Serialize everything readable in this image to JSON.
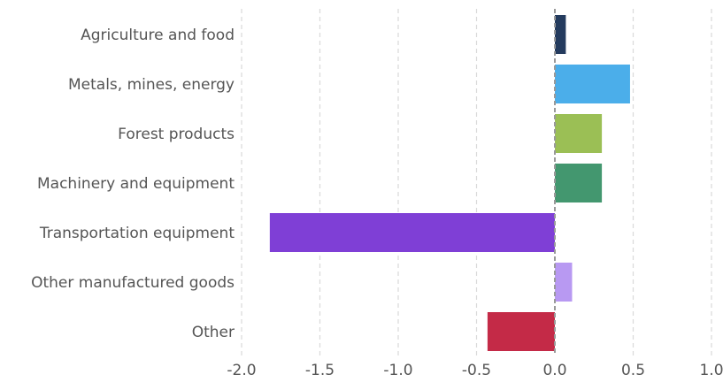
{
  "chart_data": {
    "type": "bar",
    "orientation": "horizontal",
    "title": "",
    "xlabel": "",
    "ylabel": "",
    "categories": [
      "Agriculture and food",
      "Metals, mines, energy",
      "Forest products",
      "Machinery and equipment",
      "Transportation equipment",
      "Other manufactured goods",
      "Other"
    ],
    "values": [
      0.07,
      0.48,
      0.3,
      0.3,
      -1.82,
      0.11,
      -0.43
    ],
    "colors": [
      "#243b5e",
      "#4baeea",
      "#9bbf55",
      "#43976f",
      "#7f3fd6",
      "#b899f2",
      "#c42a47"
    ],
    "xlim": [
      -2.0,
      1.0
    ],
    "xticks": [
      -2.0,
      -1.5,
      -1.0,
      -0.5,
      0.0,
      0.5,
      1.0
    ],
    "xtick_labels": [
      "-2.0",
      "-1.5",
      "-1.0",
      "-0.5",
      "0.0",
      "0.5",
      "1.0"
    ],
    "grid": "vertical dashed",
    "legend": "none"
  }
}
